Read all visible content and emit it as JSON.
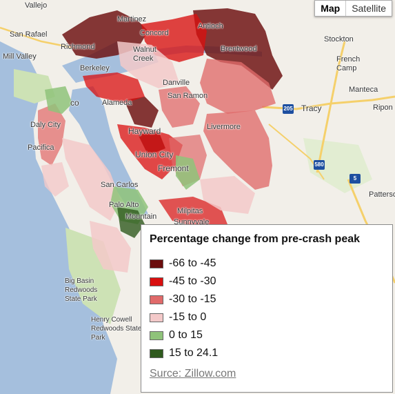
{
  "map_type": {
    "map_label": "Map",
    "satellite_label": "Satellite",
    "active": "Map"
  },
  "places": {
    "vallejo": "Vallejo",
    "martinez": "Martinez",
    "antioch": "Antioch",
    "concord": "Concord",
    "san_rafael": "San Rafael",
    "richmond": "Richmond",
    "walnut_creek": "Walnut Creek",
    "brentwood": "Brentwood",
    "stockton": "Stockton",
    "mill_valley": "Mill Valley",
    "berkeley": "Berkeley",
    "french_camp": "French Camp",
    "danville": "Danville",
    "alameda": "Alameda",
    "san_ramon": "San Ramon",
    "manteca": "Manteca",
    "san_francisco": "co",
    "tracy": "Tracy",
    "ripon": "Ripon",
    "daly_city": "Daly City",
    "hayward": "Hayward",
    "livermore": "Livermore",
    "pacifica": "Pacifica",
    "union_city": "Union City",
    "fremont": "Fremont",
    "san_carlos": "San Carlos",
    "palo_alto": "Palo Alto",
    "milpitas": "Milpitas",
    "mountain_view": "Mountain",
    "sunnyvale": "Sunnyvale",
    "patterson": "Patterso",
    "big_basin": "Big Basin Redwoods State Park",
    "henry_cowell": "Henry Cowell Redwoods State Park"
  },
  "highways": {
    "i205": "205",
    "i580": "580",
    "i5": "5"
  },
  "legend": {
    "title": "Percentage change from pre-crash peak",
    "items": [
      {
        "label": "-66 to -45",
        "color": "#6b0d0d"
      },
      {
        "label": "-45 to -30",
        "color": "#d90f0f"
      },
      {
        "label": "-30 to -15",
        "color": "#e06a6a"
      },
      {
        "label": "-15 to 0",
        "color": "#f3c9c9"
      },
      {
        "label": "0 to 15",
        "color": "#8fc37a"
      },
      {
        "label": "15 to 24.1",
        "color": "#2f5a1e"
      }
    ],
    "source": "Surce: Zillow.com"
  },
  "colors": {
    "water": "#a5bfdd",
    "land": "#f2efe9",
    "park": "#cde2b5",
    "highway": "#f5d06b",
    "interstate_shield": "#1e4fa0"
  }
}
